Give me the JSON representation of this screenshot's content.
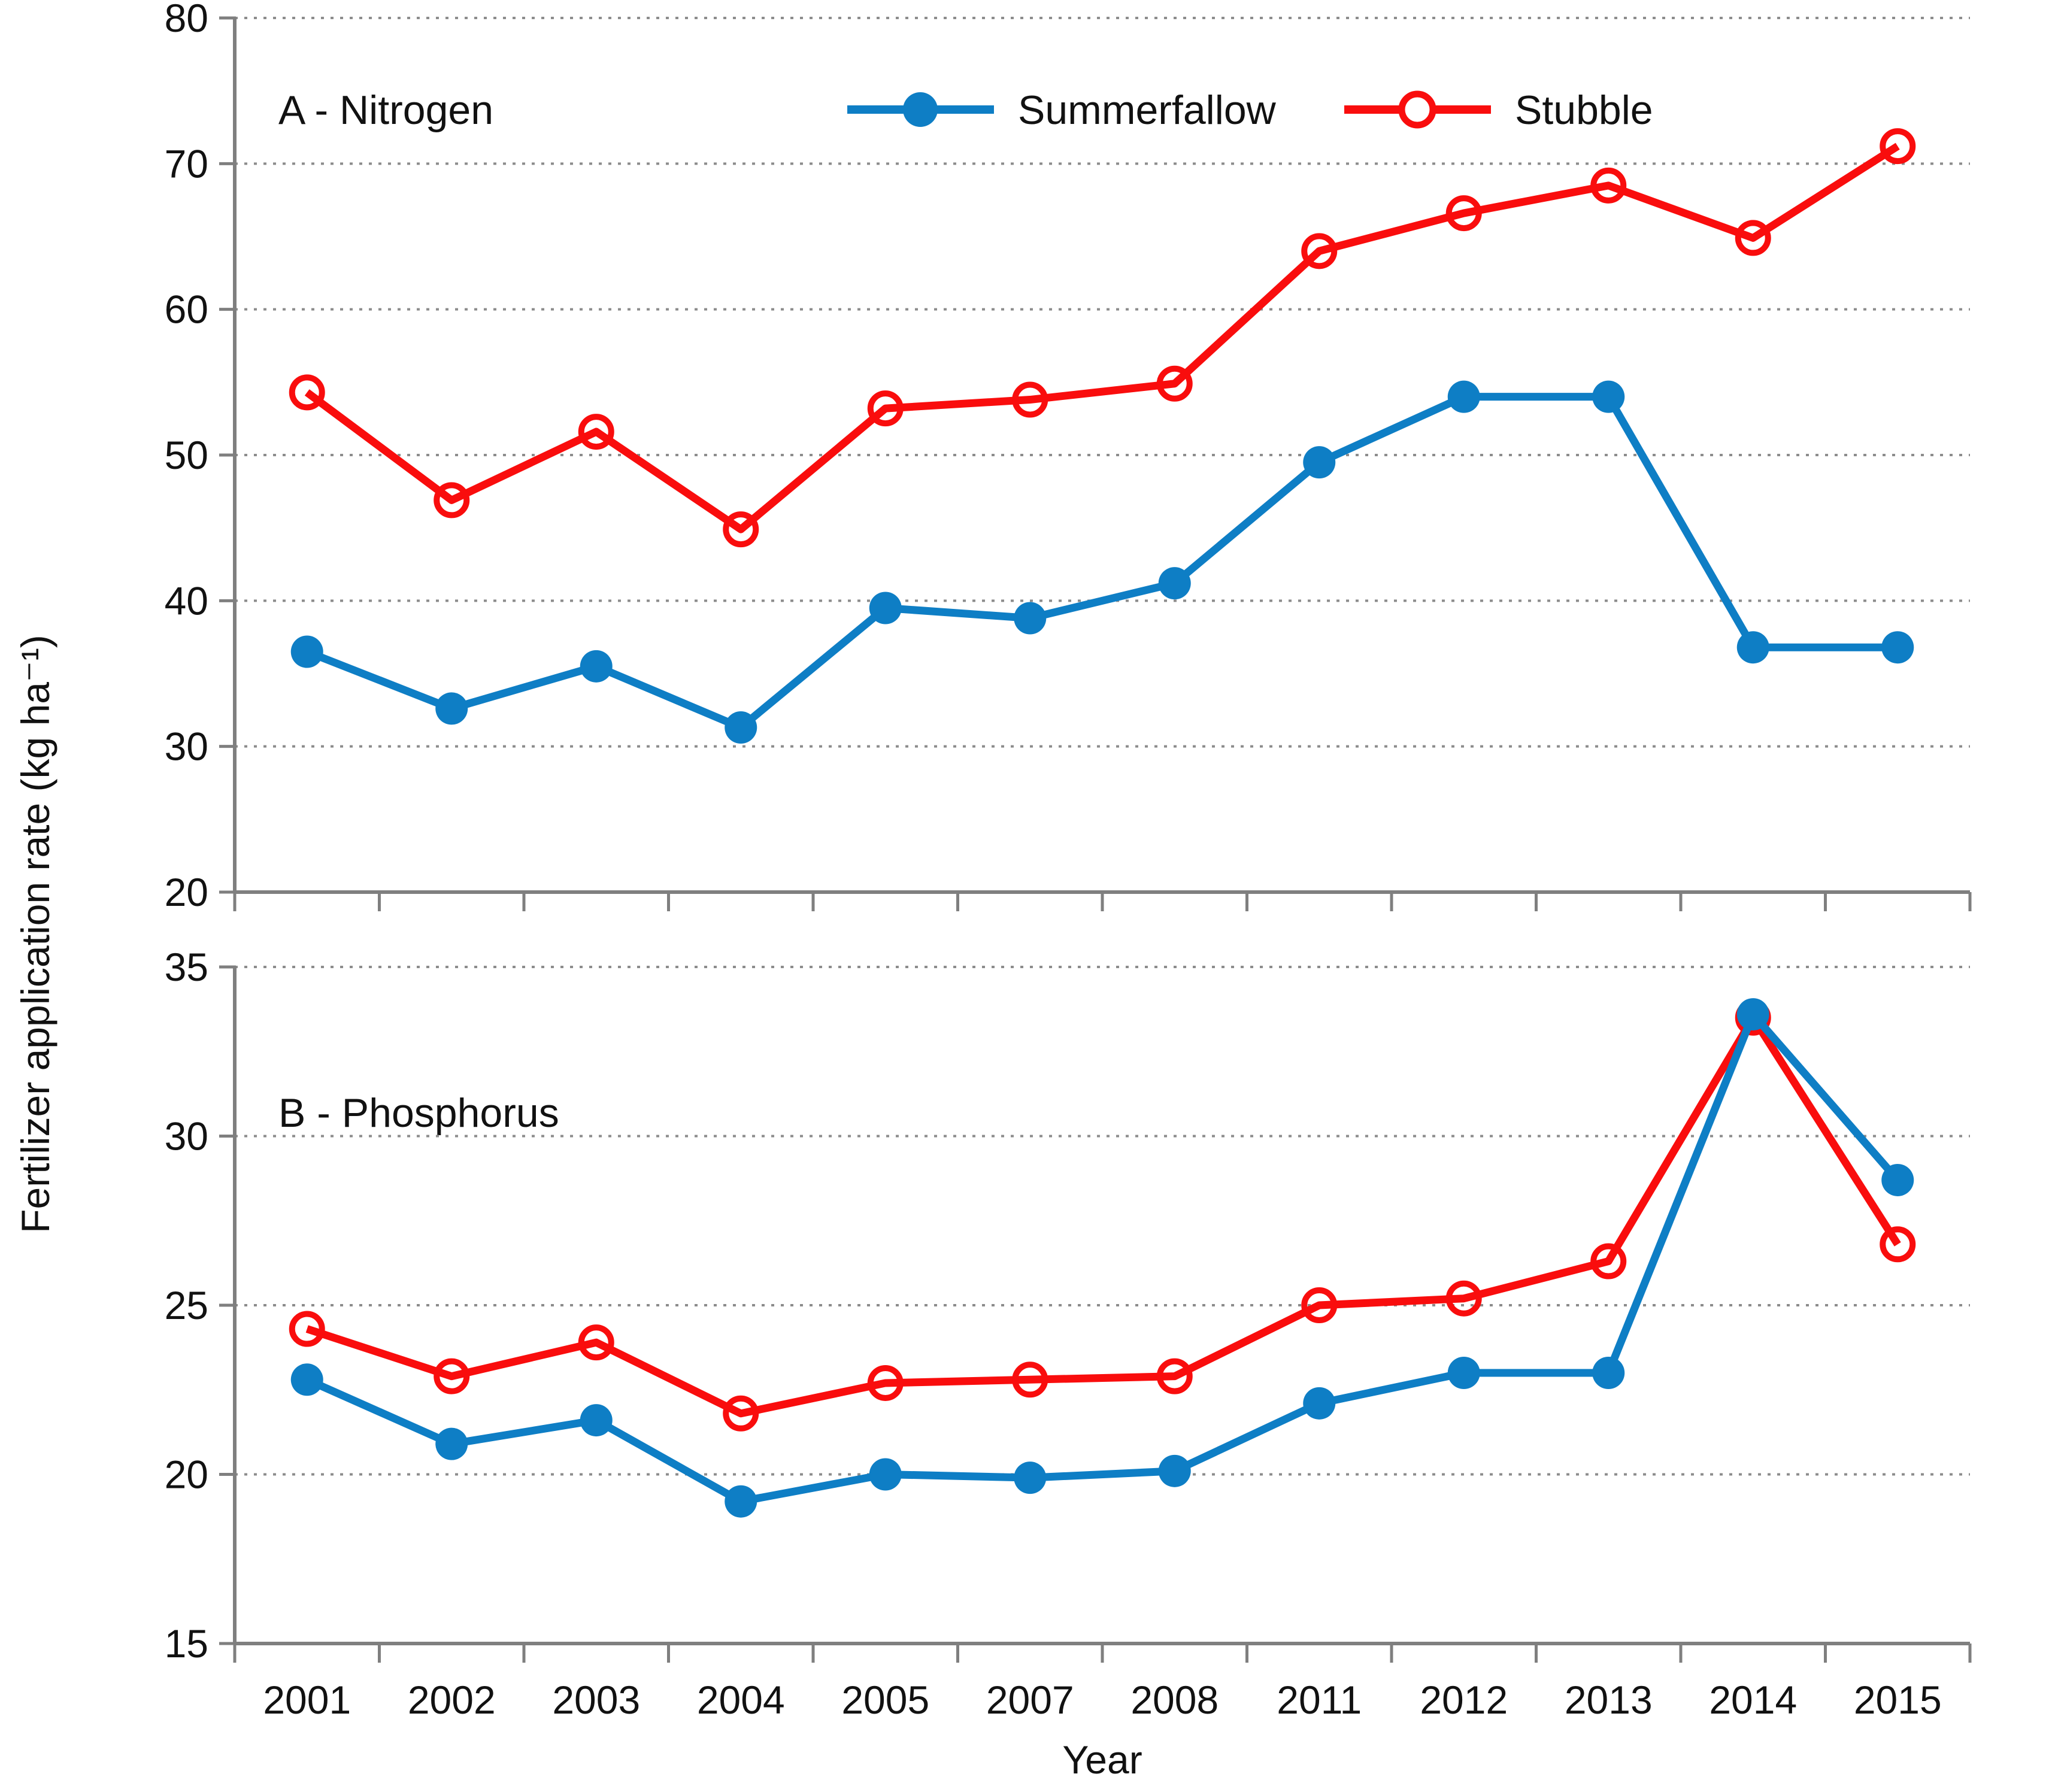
{
  "chart": {
    "y_axis_label": "Fertilizer application rate (kg ha⁻¹)",
    "x_axis_label": "Year"
  },
  "legend": {
    "items": [
      {
        "label": "Summerfallow",
        "color": "#0e7ec5",
        "marker": "filled"
      },
      {
        "label": "Stubble",
        "color": "#f90d0d",
        "marker": "open"
      }
    ]
  },
  "chart_data": [
    {
      "type": "line",
      "panel_label": "A - Nitrogen",
      "categories": [
        "2001",
        "2002",
        "2003",
        "2004",
        "2005",
        "2007",
        "2008",
        "2011",
        "2012",
        "2013",
        "2014",
        "2015"
      ],
      "series": [
        {
          "name": "Stubble",
          "marker": "open",
          "color": "#f90d0d",
          "values": [
            54.3,
            46.9,
            51.6,
            44.9,
            53.2,
            53.8,
            54.9,
            64.0,
            66.6,
            68.5,
            64.9,
            71.2
          ]
        },
        {
          "name": "Summerfallow",
          "marker": "filled",
          "color": "#0e7ec5",
          "values": [
            36.5,
            32.6,
            35.5,
            31.3,
            39.5,
            38.8,
            41.2,
            49.5,
            54.0,
            54.0,
            36.8,
            36.8
          ]
        }
      ],
      "ylim": [
        20,
        80
      ],
      "yticks": [
        20,
        30,
        40,
        50,
        60,
        70,
        80
      ],
      "grid": "dotted horizontal",
      "legend_position": "top-center"
    },
    {
      "type": "line",
      "panel_label": "B - Phosphorus",
      "categories": [
        "2001",
        "2002",
        "2003",
        "2004",
        "2005",
        "2007",
        "2008",
        "2011",
        "2012",
        "2013",
        "2014",
        "2015"
      ],
      "series": [
        {
          "name": "Stubble",
          "marker": "open",
          "color": "#f90d0d",
          "values": [
            24.3,
            22.9,
            23.9,
            21.8,
            22.7,
            22.8,
            22.9,
            25.0,
            25.2,
            26.3,
            33.5,
            26.8
          ]
        },
        {
          "name": "Summerfallow",
          "marker": "filled",
          "color": "#0e7ec5",
          "values": [
            22.8,
            20.9,
            21.6,
            19.2,
            20.0,
            19.9,
            20.1,
            22.1,
            23.0,
            23.0,
            33.6,
            28.7
          ]
        }
      ],
      "ylim": [
        15,
        35
      ],
      "yticks": [
        15,
        20,
        25,
        30,
        35
      ],
      "grid": "dotted horizontal",
      "legend_position": "none"
    }
  ]
}
